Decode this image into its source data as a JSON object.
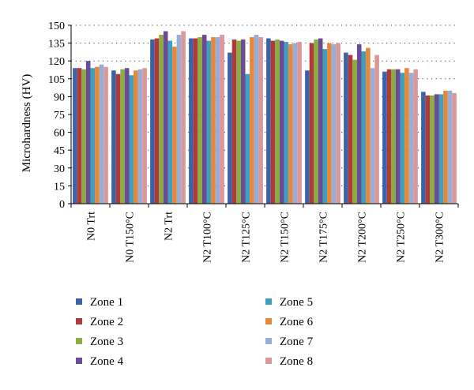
{
  "chart_data": {
    "type": "bar",
    "title": "",
    "xlabel": "",
    "ylabel": "Microhardness (HV)",
    "ylim": [
      0,
      150
    ],
    "yticks": [
      0,
      15,
      30,
      45,
      60,
      75,
      90,
      105,
      120,
      135,
      150
    ],
    "grid": "horizontal dotted",
    "legend_position": "bottom",
    "categories": [
      "N0 Trt",
      "N0 T150°C",
      "N2 Trt",
      "N2 T100°C",
      "N2 T125°C",
      "N2 T150°C",
      "N2 T175°C",
      "N2 T200°C",
      "N2 T250°C",
      "N2 T300°C"
    ],
    "series": [
      {
        "name": "Zone 1",
        "color": "#3a63a8",
        "values": [
          114,
          112,
          138,
          139,
          127,
          139,
          112,
          127,
          111,
          94
        ]
      },
      {
        "name": "Zone 2",
        "color": "#b03a3a",
        "values": [
          114,
          109,
          139,
          139,
          138,
          137,
          135,
          125,
          113,
          91
        ]
      },
      {
        "name": "Zone 3",
        "color": "#8bac3e",
        "values": [
          113,
          113,
          142,
          140,
          137,
          138,
          138,
          121,
          113,
          91
        ]
      },
      {
        "name": "Zone 4",
        "color": "#6a4c96",
        "values": [
          120,
          114,
          145,
          142,
          138,
          137,
          139,
          134,
          113,
          92
        ]
      },
      {
        "name": "Zone 5",
        "color": "#3f9fbf",
        "values": [
          114,
          108,
          137,
          137,
          109,
          136,
          130,
          128,
          110,
          92
        ]
      },
      {
        "name": "Zone 6",
        "color": "#e8863a",
        "values": [
          115,
          112,
          132,
          140,
          140,
          134,
          135,
          131,
          114,
          95
        ]
      },
      {
        "name": "Zone 7",
        "color": "#96afd8",
        "values": [
          117,
          113,
          142,
          140,
          142,
          135,
          134,
          114,
          110,
          95
        ]
      },
      {
        "name": "Zone 8",
        "color": "#dc9898",
        "values": [
          115,
          114,
          145,
          142,
          140,
          136,
          135,
          125,
          113,
          93
        ]
      }
    ]
  }
}
